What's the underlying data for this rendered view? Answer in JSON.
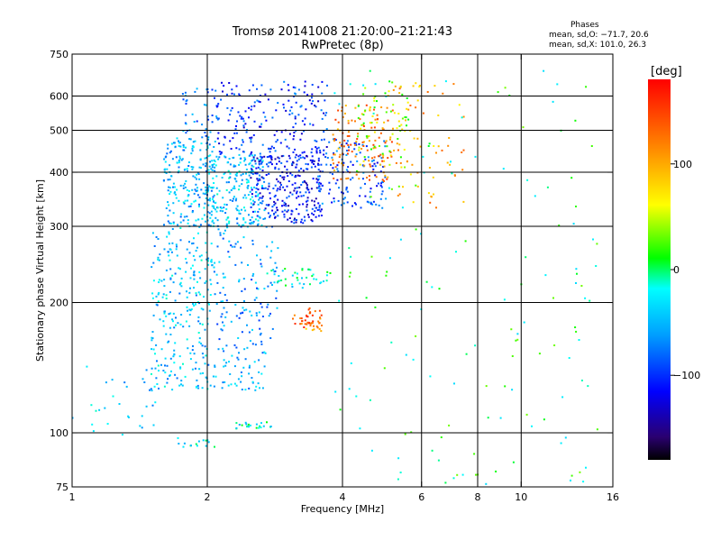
{
  "chart_data": {
    "type": "scatter",
    "title": "Tromsø 20141008 21:20:00–21:21:43",
    "subtitle": "RwPretec (8p)",
    "xlabel": "Frequency [MHz]",
    "ylabel": "Stationary phase Virtual Height [km]",
    "x_scale": "log",
    "y_scale": "log",
    "xlim": [
      1,
      16
    ],
    "ylim": [
      75,
      750
    ],
    "x_ticks": [
      1,
      2,
      4,
      6,
      8,
      10,
      16
    ],
    "x_tick_labels": [
      "1",
      "2",
      "4",
      "6",
      "8",
      "10",
      "16"
    ],
    "y_ticks": [
      75,
      100,
      200,
      300,
      400,
      500,
      600,
      750
    ],
    "y_tick_labels": [
      "75",
      "100",
      "200",
      "300",
      "400",
      "500",
      "600",
      "750"
    ],
    "x_gridlines": [
      2,
      4,
      6,
      8,
      10
    ],
    "y_gridlines": [
      100,
      200,
      300,
      400,
      500,
      600
    ],
    "grid": true,
    "stats_header": "Phases",
    "stats_lines": [
      "mean, sd,O: −71.7, 20.6",
      "mean, sd,X: 101.0, 26.3"
    ],
    "colorbar": {
      "label": "[deg]",
      "min": -180,
      "max": 180,
      "ticks": [
        100,
        0,
        -100
      ],
      "tick_labels": [
        "100",
        "0",
        "−100"
      ],
      "colormap": "rainbow"
    },
    "clusters": [
      {
        "freq": [
          1.0,
          1.55
        ],
        "h": [
          95,
          150
        ],
        "phase": -40,
        "count": 30
      },
      {
        "freq": [
          1.5,
          2.05
        ],
        "h": [
          125,
          300
        ],
        "phase": -45,
        "count": 260
      },
      {
        "freq": [
          1.6,
          2.1
        ],
        "h": [
          300,
          480
        ],
        "phase": -50,
        "count": 220
      },
      {
        "freq": [
          1.75,
          2.1
        ],
        "h": [
          480,
          630
        ],
        "phase": -70,
        "count": 40
      },
      {
        "freq": [
          2.0,
          2.7
        ],
        "h": [
          300,
          440
        ],
        "phase": -45,
        "count": 220
      },
      {
        "freq": [
          2.5,
          3.6
        ],
        "h": [
          305,
          440
        ],
        "phase": -110,
        "count": 280
      },
      {
        "freq": [
          2.05,
          2.9
        ],
        "h": [
          160,
          300
        ],
        "phase": -65,
        "count": 130
      },
      {
        "freq": [
          2.05,
          2.7
        ],
        "h": [
          125,
          160
        ],
        "phase": -55,
        "count": 60
      },
      {
        "freq": [
          2.3,
          2.8
        ],
        "h": [
          102,
          106
        ],
        "phase": -20,
        "count": 22
      },
      {
        "freq": [
          1.7,
          2.1
        ],
        "h": [
          92,
          98
        ],
        "phase": -20,
        "count": 15
      },
      {
        "freq": [
          2.1,
          3.7
        ],
        "h": [
          440,
          650
        ],
        "phase": -100,
        "count": 190
      },
      {
        "freq": [
          3.5,
          5.0
        ],
        "h": [
          330,
          480
        ],
        "phase": -90,
        "count": 140
      },
      {
        "freq": [
          3.8,
          5.2
        ],
        "h": [
          380,
          580
        ],
        "phase": 120,
        "count": 130
      },
      {
        "freq": [
          4.3,
          5.6
        ],
        "h": [
          400,
          650
        ],
        "phase": 40,
        "count": 60
      },
      {
        "freq": [
          5.2,
          7.5
        ],
        "h": [
          330,
          650
        ],
        "phase": 100,
        "count": 70
      },
      {
        "freq": [
          3.1,
          3.6
        ],
        "h": [
          175,
          195
        ],
        "phase": 140,
        "count": 35
      },
      {
        "freq": [
          3.3,
          3.6
        ],
        "h": [
          170,
          180
        ],
        "phase": 100,
        "count": 12
      },
      {
        "freq": [
          2.7,
          3.8
        ],
        "h": [
          215,
          240
        ],
        "phase": -20,
        "count": 40
      },
      {
        "freq": [
          3.8,
          15.0
        ],
        "h": [
          75,
          700
        ],
        "phase": 0,
        "count": 150
      }
    ]
  }
}
